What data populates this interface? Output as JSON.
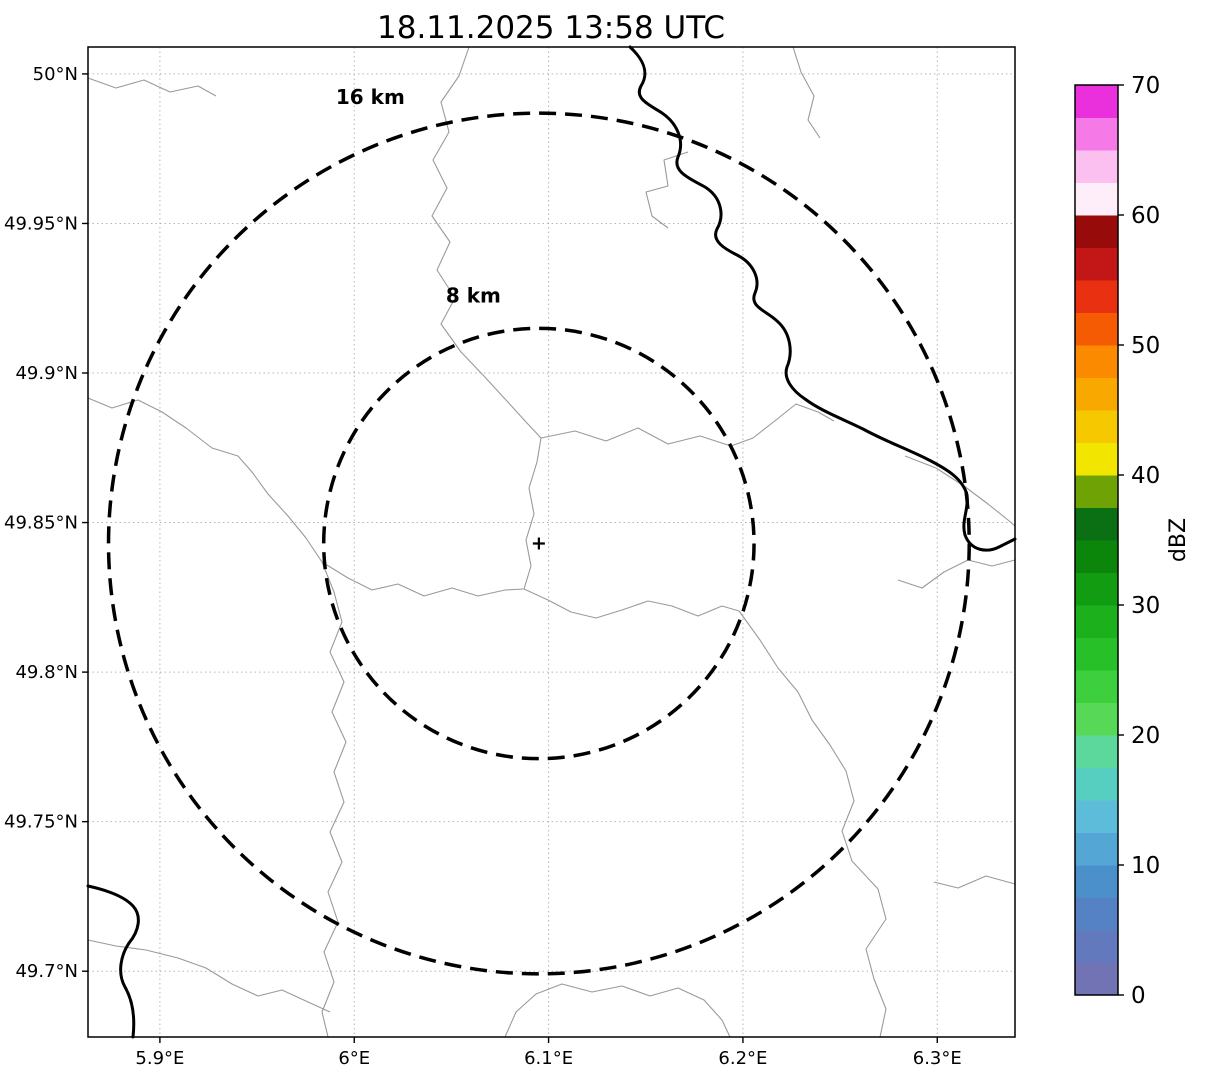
{
  "title": "18.11.2025 13:58 UTC",
  "chart_data": {
    "type": "heatmap",
    "title": "18.11.2025 13:58 UTC",
    "xlabel": "",
    "ylabel": "",
    "x_tick_labels": [
      "5.9°E",
      "6°E",
      "6.1°E",
      "6.2°E",
      "6.3°E"
    ],
    "x_tick_values": [
      5.9,
      6.0,
      6.1,
      6.2,
      6.3
    ],
    "y_tick_labels": [
      "50°N",
      "49.95°N",
      "49.9°N",
      "49.85°N",
      "49.8°N",
      "49.75°N",
      "49.7°N"
    ],
    "y_tick_values": [
      50.0,
      49.95,
      49.9,
      49.85,
      49.8,
      49.75,
      49.7
    ],
    "xlim": [
      5.863,
      6.34
    ],
    "ylim": [
      49.678,
      50.009
    ],
    "grid": true,
    "radar_center": {
      "lon": 6.095,
      "lat": 49.843,
      "marker": "+"
    },
    "range_rings": [
      {
        "radius_km": 8,
        "label": "8 km"
      },
      {
        "radius_km": 16,
        "label": "16 km"
      }
    ],
    "values": [],
    "note": "no reflectivity echoes visible over the map area; basemap shows administrative boundaries and a bold border river line",
    "colorbar": {
      "label": "dBZ",
      "min": 0,
      "max": 70,
      "ticks": [
        0,
        10,
        20,
        30,
        40,
        50,
        60,
        70
      ],
      "segment_step_dbz": 2.5,
      "colors_bottom_to_top": [
        "#7173b5",
        "#6279bd",
        "#5482c5",
        "#4c90cb",
        "#54a6d5",
        "#5cbcda",
        "#57cfc0",
        "#5dd89c",
        "#57d957",
        "#3ecf3e",
        "#28c028",
        "#1cb01c",
        "#129c12",
        "#0b860b",
        "#0a7013",
        "#6fa305",
        "#f2e600",
        "#f6c800",
        "#f9a800",
        "#fb8a00",
        "#f55b02",
        "#e93112",
        "#c31616",
        "#970b0b",
        "#fdeef9",
        "#fbc0f0",
        "#f57ae8",
        "#ea30dd"
      ]
    }
  }
}
